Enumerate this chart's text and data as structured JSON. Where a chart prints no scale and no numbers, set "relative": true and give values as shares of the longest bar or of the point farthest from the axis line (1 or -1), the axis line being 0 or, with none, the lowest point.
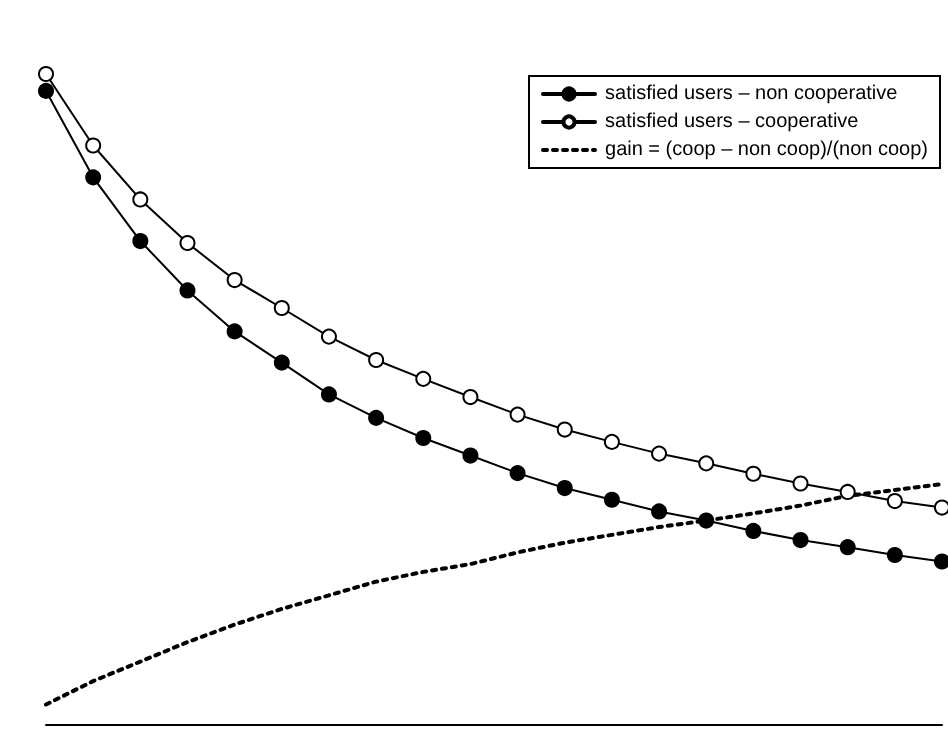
{
  "chart_data": {
    "type": "line",
    "relative": true,
    "legend": "top right",
    "grid": false,
    "categories": [
      null,
      null,
      null,
      null,
      null,
      null,
      null,
      null,
      null,
      null,
      null,
      null,
      null,
      null,
      null,
      null,
      null,
      null,
      null,
      null
    ],
    "series": [
      {
        "name": "satisfied users – non cooperative",
        "color": "#000000",
        "marker": "circle",
        "line_style": "solid",
        "values": [
          0.974,
          0.841,
          0.743,
          0.667,
          0.604,
          0.556,
          0.507,
          0.471,
          0.44,
          0.413,
          0.386,
          0.363,
          0.345,
          0.327,
          0.313,
          0.297,
          0.283,
          0.272,
          0.26,
          0.25
        ]
      },
      {
        "name": "satisfied users – cooperative",
        "color": "#000000",
        "marker": "circle",
        "line_style": "solid",
        "values": [
          1.0,
          0.89,
          0.807,
          0.74,
          0.683,
          0.64,
          0.596,
          0.56,
          0.531,
          0.503,
          0.476,
          0.453,
          0.434,
          0.416,
          0.401,
          0.385,
          0.37,
          0.357,
          0.343,
          0.333
        ]
      },
      {
        "name": "gain = (coop – non coop)/(non coop)",
        "color": "#000000",
        "marker": "none",
        "line_style": "dotted",
        "values": [
          0.03,
          0.066,
          0.096,
          0.126,
          0.153,
          0.177,
          0.198,
          0.219,
          0.234,
          0.246,
          0.264,
          0.279,
          0.291,
          0.303,
          0.313,
          0.324,
          0.336,
          0.351,
          0.36,
          0.369
        ]
      }
    ]
  }
}
